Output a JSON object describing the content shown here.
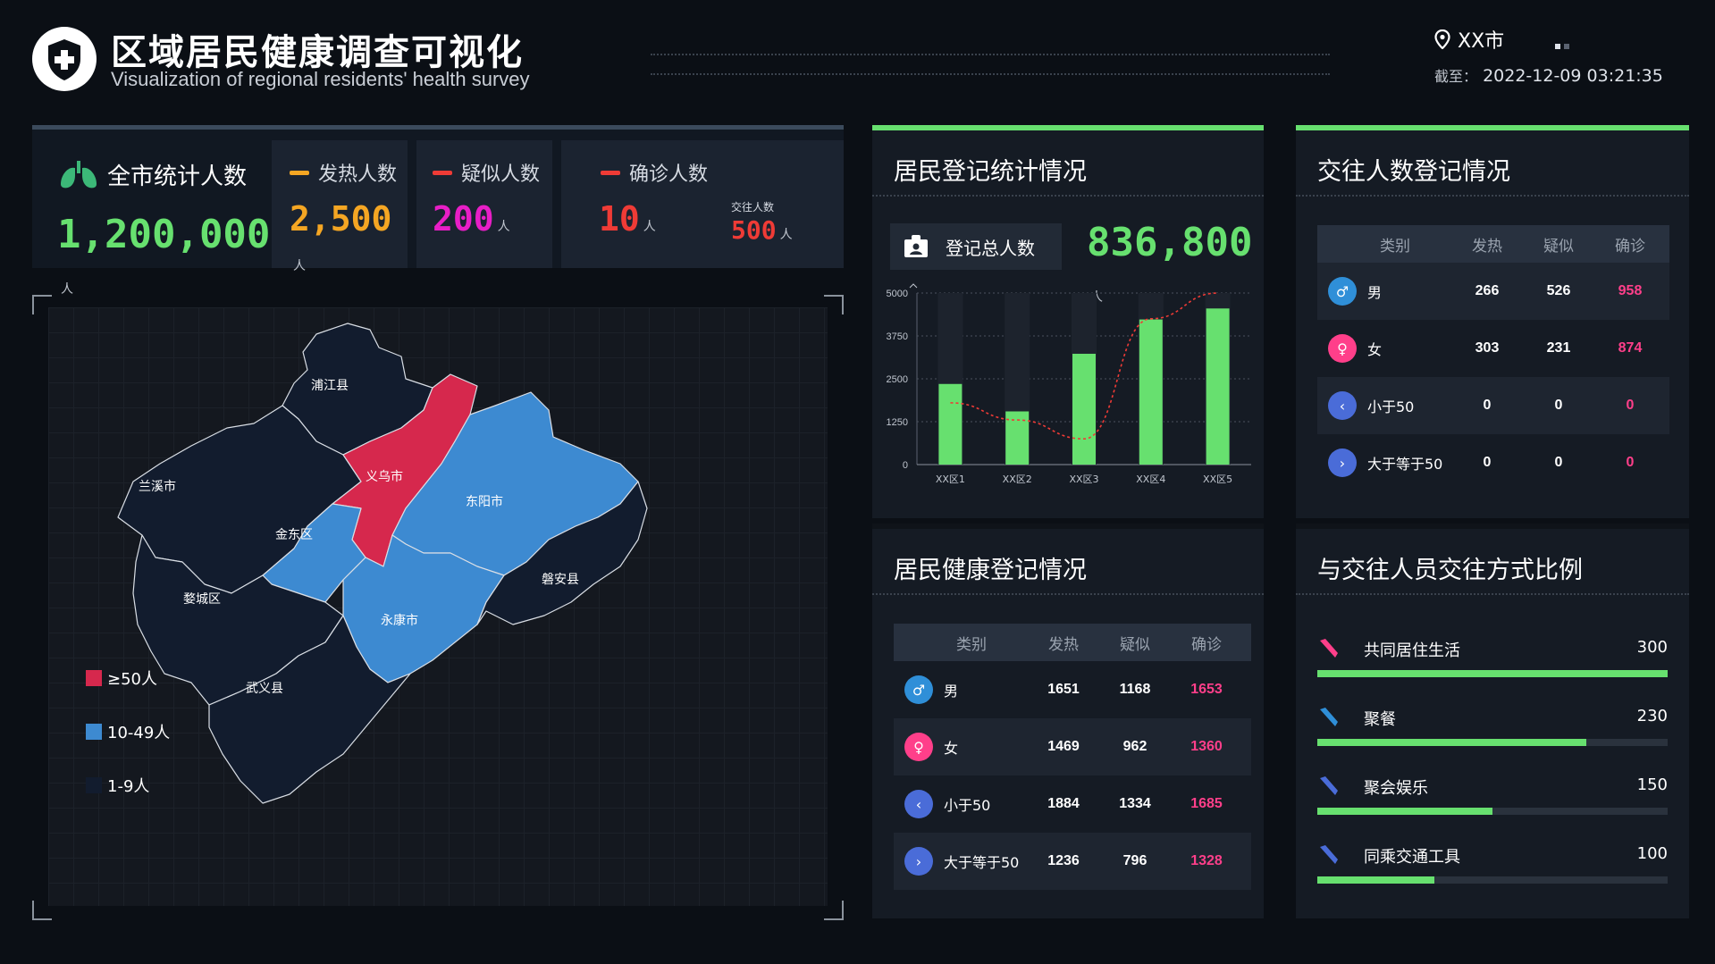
{
  "header": {
    "title": "区域居民健康调查可视化",
    "subtitle": "Visualization of regional residents' health survey",
    "city": "XX市",
    "time_label": "截至：",
    "time_value": "2022-12-09 03:21:35"
  },
  "stats": {
    "total": {
      "label": "全市统计人数",
      "value": "1,200,000",
      "unit": "人",
      "color": "#67e06f"
    },
    "fever": {
      "label": "发热人数",
      "value": "2,500",
      "unit": "人",
      "color": "#f5a623"
    },
    "suspect": {
      "label": "疑似人数",
      "value": "200",
      "unit": "人",
      "color": "#e81ec6"
    },
    "confirmed": {
      "label": "确诊人数",
      "value": "10",
      "unit": "人",
      "color": "#ef3b36"
    },
    "contacts": {
      "label": "交往人数",
      "value": "500",
      "unit": "人",
      "color": "#ef3b36"
    }
  },
  "map": {
    "regions": {
      "pujiang": "浦江县",
      "lanxi": "兰溪市",
      "yiwu": "义乌市",
      "dongyang": "东阳市",
      "jindong": "金东区",
      "wucheng": "婺城区",
      "yongkang": "永康市",
      "panan": "磐安县",
      "wuyi": "武义县"
    },
    "legend": [
      {
        "label": "≥50人",
        "color": "#d6284d"
      },
      {
        "label": "10-49人",
        "color": "#3d8ad1"
      },
      {
        "label": "1-9人",
        "color": "#121c2e"
      }
    ]
  },
  "registration": {
    "title": "居民登记统计情况",
    "total_label": "登记总人数",
    "total_value": "836,800",
    "unit": "人"
  },
  "chart_data": {
    "type": "bar",
    "categories": [
      "XX区1",
      "XX区2",
      "XX区3",
      "XX区4",
      "XX区5"
    ],
    "series": [
      {
        "type": "bar",
        "values": [
          2350,
          1550,
          3230,
          4230,
          4550
        ]
      },
      {
        "type": "line",
        "values": [
          1800,
          1300,
          750,
          4250,
          5000
        ]
      }
    ],
    "ylim": [
      0,
      5000
    ],
    "yticks": [
      0,
      1250,
      2500,
      3750,
      5000
    ],
    "colors": {
      "bar": "#67e06f",
      "line": "#ef3b36"
    }
  },
  "health": {
    "title": "居民健康登记情况",
    "headers": [
      "类别",
      "发热",
      "疑似",
      "确诊"
    ],
    "rows": [
      {
        "icon": "male-icon",
        "color": "#2f8fd8",
        "name": "男",
        "fever": "1651",
        "suspect": "1168",
        "confirmed": "1653"
      },
      {
        "icon": "female-icon",
        "color": "#ff3f8a",
        "name": "女",
        "fever": "1469",
        "suspect": "962",
        "confirmed": "1360"
      },
      {
        "icon": "chevron-left-icon",
        "color": "#4a6cd8",
        "name": "小于50",
        "fever": "1884",
        "suspect": "1334",
        "confirmed": "1685"
      },
      {
        "icon": "chevron-right-icon",
        "color": "#4a6cd8",
        "name": "大于等于50",
        "fever": "1236",
        "suspect": "796",
        "confirmed": "1328"
      }
    ]
  },
  "contacts": {
    "title": "交往人数登记情况",
    "headers": [
      "类别",
      "发热",
      "疑似",
      "确诊"
    ],
    "rows": [
      {
        "icon": "male-icon",
        "color": "#2f8fd8",
        "name": "男",
        "fever": "266",
        "suspect": "526",
        "confirmed": "958"
      },
      {
        "icon": "female-icon",
        "color": "#ff3f8a",
        "name": "女",
        "fever": "303",
        "suspect": "231",
        "confirmed": "874"
      },
      {
        "icon": "chevron-left-icon",
        "color": "#4a6cd8",
        "name": "小于50",
        "fever": "0",
        "suspect": "0",
        "confirmed": "0"
      },
      {
        "icon": "chevron-right-icon",
        "color": "#4a6cd8",
        "name": "大于等于50",
        "fever": "0",
        "suspect": "0",
        "confirmed": "0"
      }
    ]
  },
  "ratio": {
    "title": "与交往人员交往方式比例",
    "max": 300,
    "items": [
      {
        "label": "共同居住生活",
        "value": 300,
        "icon_color": "#ff3f8a"
      },
      {
        "label": "聚餐",
        "value": 230,
        "icon_color": "#2f8fd8"
      },
      {
        "label": "聚会娱乐",
        "value": 150,
        "icon_color": "#4a6cd8"
      },
      {
        "label": "同乘交通工具",
        "value": 100,
        "icon_color": "#4a6cd8"
      }
    ]
  }
}
